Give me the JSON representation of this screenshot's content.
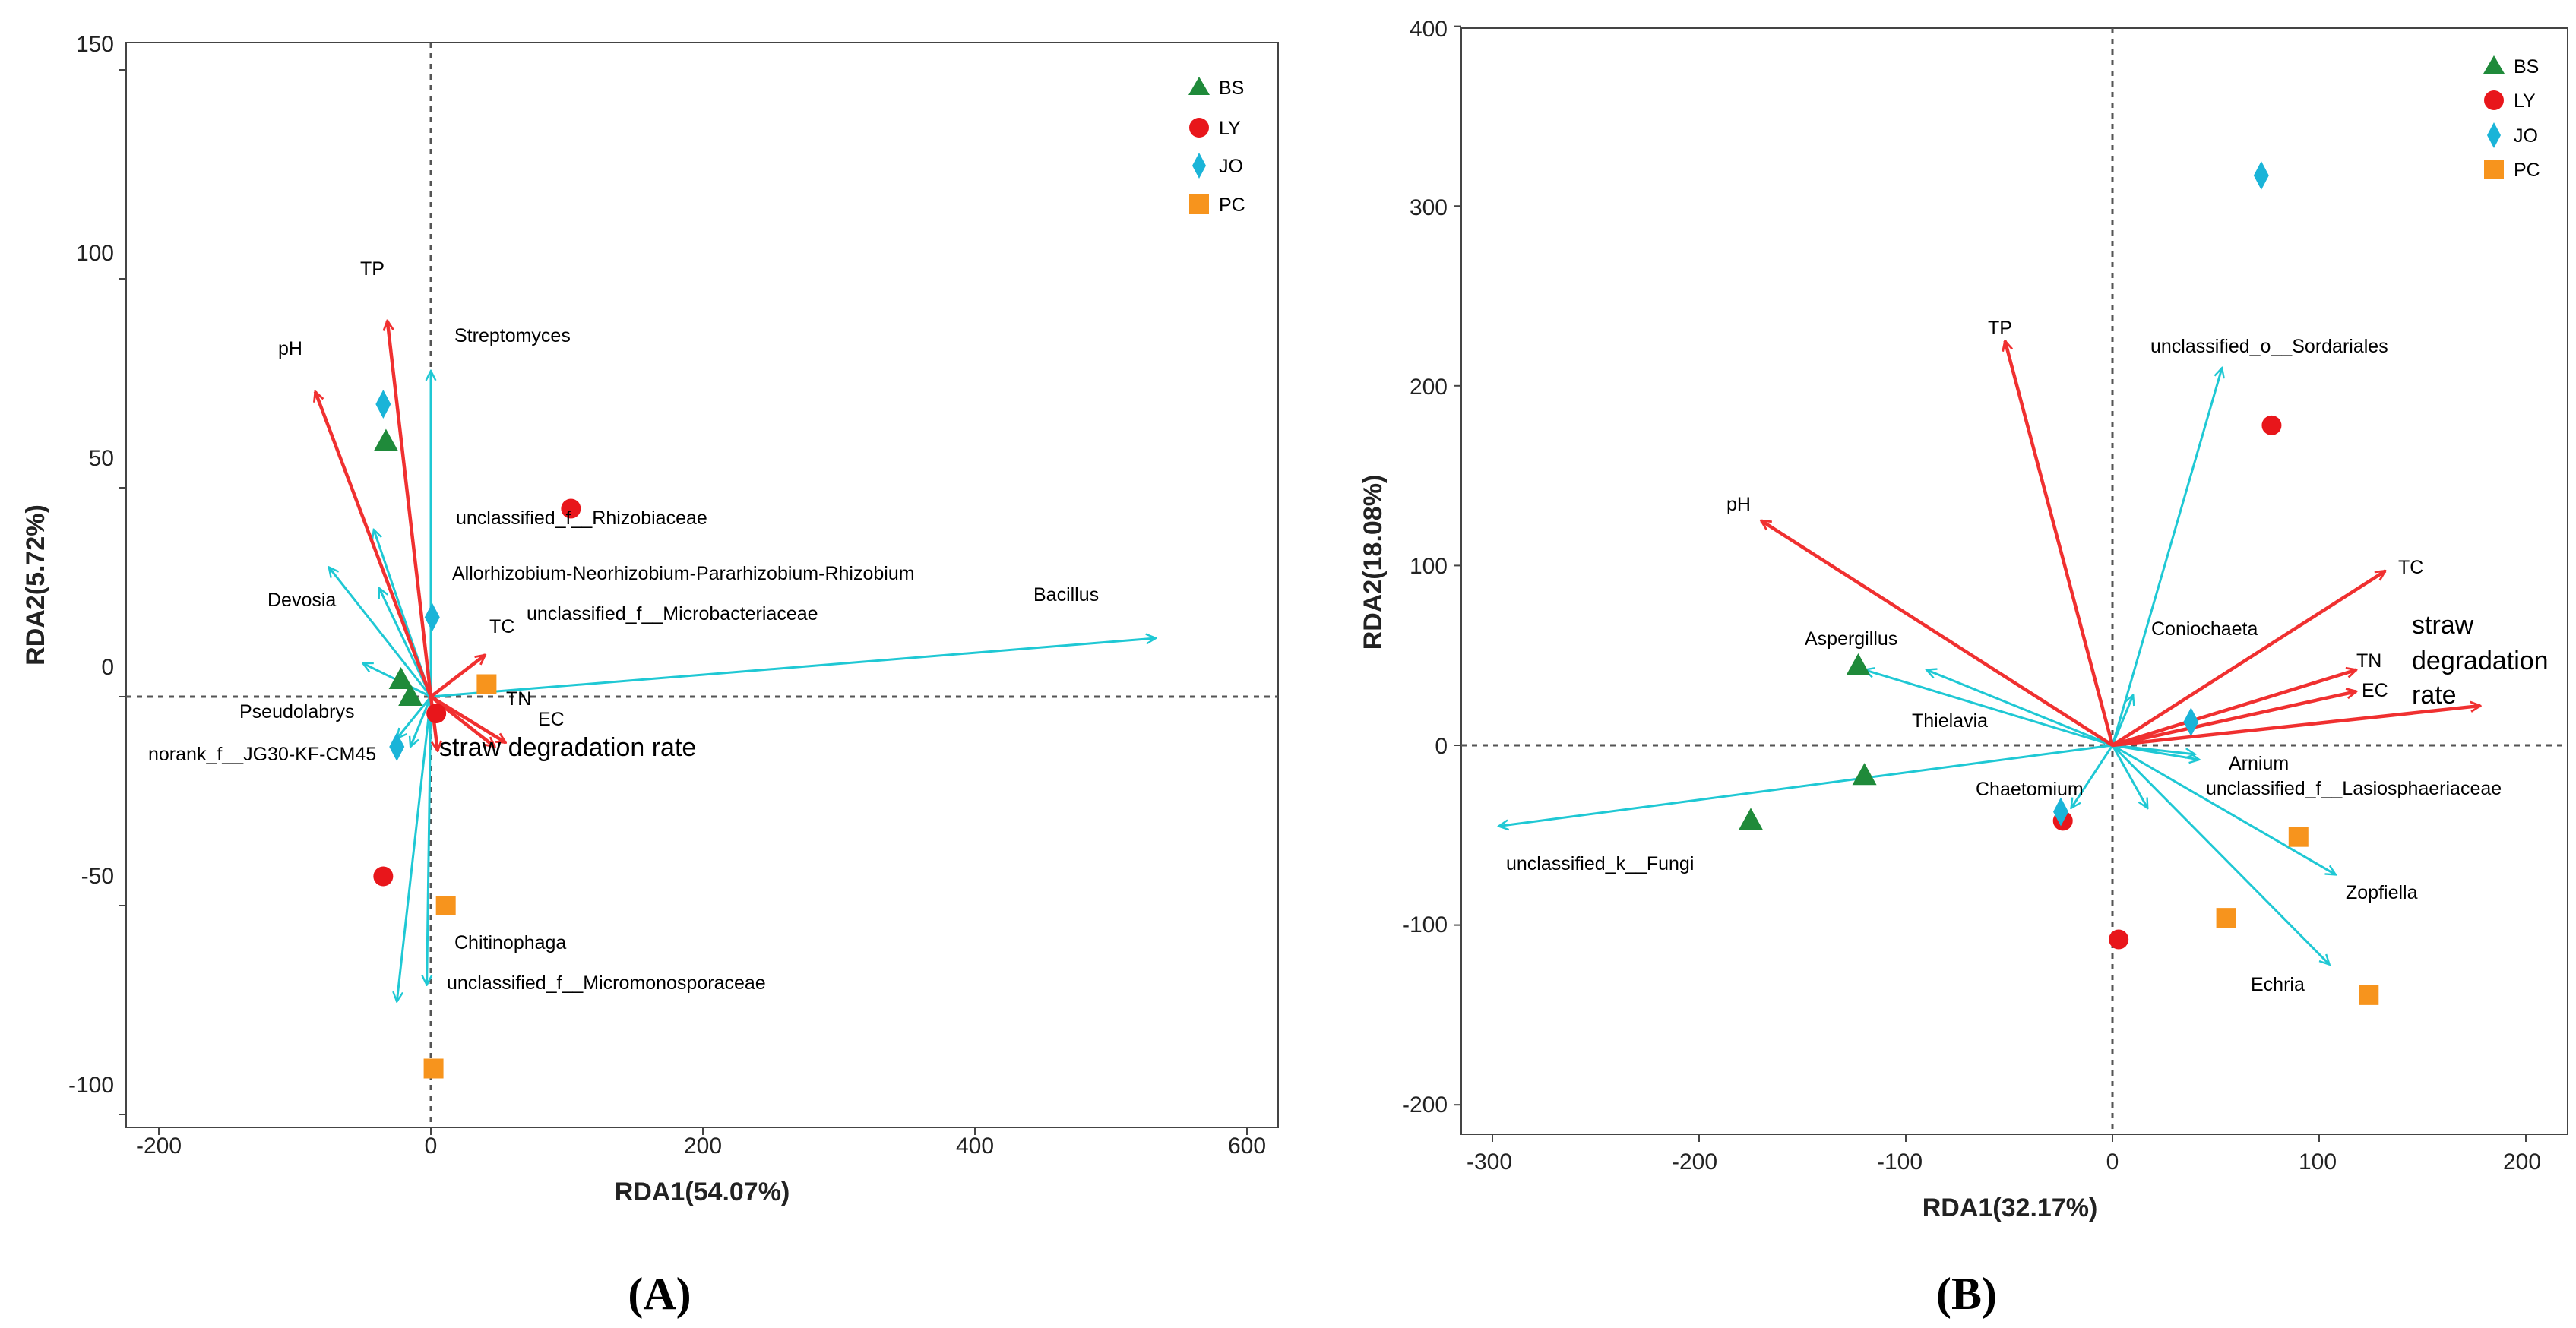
{
  "colors": {
    "env_arrow": "#f03030",
    "taxon_arrow": "#1fc8d4",
    "BS": "#1f8a3a",
    "LY": "#e8161b",
    "JO": "#1ab4d8",
    "PC": "#f7941d"
  },
  "chart_data": [
    {
      "type": "scatter",
      "subtype": "rda-biplot",
      "panel_label": "(A)",
      "xlabel": "RDA1(54.07%)",
      "ylabel": "RDA2(5.72%)",
      "xlim": [
        -225,
        625
      ],
      "ylim": [
        -110,
        150
      ],
      "xticks": [
        -200,
        0,
        200,
        400,
        600
      ],
      "yticks": [
        -100,
        -50,
        0,
        50,
        100,
        150
      ],
      "tick_labels_x": [
        "-200",
        "0",
        "200",
        "400",
        "600"
      ],
      "tick_labels_y": [
        "-100",
        "-50",
        "0",
        "50",
        "100",
        "150"
      ],
      "reference_lines": "dashed lines at x=0 and y=0",
      "legend": {
        "position": "top-right",
        "entries": [
          "BS",
          "LY",
          "JO",
          "PC"
        ]
      },
      "samples": [
        {
          "group": "BS",
          "points": [
            [
              -33,
              61
            ],
            [
              -22,
              4
            ],
            [
              -15,
              0
            ]
          ]
        },
        {
          "group": "LY",
          "points": [
            [
              103,
              45
            ],
            [
              4,
              -4
            ],
            [
              -35,
              -43
            ]
          ]
        },
        {
          "group": "JO",
          "points": [
            [
              -35,
              70
            ],
            [
              1,
              19
            ],
            [
              -25,
              -12
            ]
          ]
        },
        {
          "group": "PC",
          "points": [
            [
              41,
              3
            ],
            [
              11,
              -50
            ],
            [
              2,
              -89
            ]
          ]
        }
      ],
      "env_vectors": [
        {
          "name": "TP",
          "x": -32,
          "y": 90
        },
        {
          "name": "pH",
          "x": -85,
          "y": 73
        },
        {
          "name": "TC",
          "x": 40,
          "y": 10
        },
        {
          "name": "TN",
          "x": 47,
          "y": -12
        },
        {
          "name": "EC",
          "x": 55,
          "y": -11
        },
        {
          "name": "straw degradation rate",
          "x": 5,
          "y": -13
        }
      ],
      "taxa_vectors": [
        {
          "name": "Streptomyces",
          "x": 0,
          "y": 78
        },
        {
          "name": "unclassified_f__Rhizobiaceae",
          "x": -42,
          "y": 40
        },
        {
          "name": "Allorhizobium-Neorhizobium-Pararhizobium-Rhizobium",
          "x": -38,
          "y": 26
        },
        {
          "name": "Devosia",
          "x": -75,
          "y": 31
        },
        {
          "name": "unclassified_f__Microbacteriaceae",
          "x": -50,
          "y": 8
        },
        {
          "name": "Bacillus",
          "x": 533,
          "y": 14
        },
        {
          "name": "Pseudolabrys",
          "x": -25,
          "y": -10
        },
        {
          "name": "norank_f__JG30-KF-CM45",
          "x": -15,
          "y": -12
        },
        {
          "name": "Chitinophaga",
          "x": -3,
          "y": -69
        },
        {
          "name": "unclassified_f__Micromonosporaceae",
          "x": -25,
          "y": -73
        }
      ],
      "annotations": [
        "TP",
        "pH",
        "Streptomyces",
        "unclassified_f__Rhizobiaceae",
        "Allorhizobium-Neorhizobium-Pararhizobium-Rhizobium",
        "Devosia",
        "unclassified_f__Microbacteriaceae",
        "Bacillus",
        "TC",
        "TN",
        "EC",
        "straw degradation rate",
        "Pseudolabrys",
        "norank_f__JG30-KF-CM45",
        "Chitinophaga",
        "unclassified_f__Micromonosporaceae"
      ]
    },
    {
      "type": "scatter",
      "subtype": "rda-biplot",
      "panel_label": "(B)",
      "xlabel": "RDA1(32.17%)",
      "ylabel": "RDA2(18.08%)",
      "xlim": [
        -320,
        220
      ],
      "ylim": [
        -215,
        400
      ],
      "xticks": [
        -300,
        -200,
        -100,
        0,
        100,
        200
      ],
      "yticks": [
        -200,
        -100,
        0,
        100,
        200,
        300,
        400
      ],
      "tick_labels_x": [
        "-300",
        "-200",
        "-100",
        "0",
        "100",
        "200"
      ],
      "tick_labels_y": [
        "-200",
        "-100",
        "0",
        "100",
        "200",
        "300",
        "400"
      ],
      "reference_lines": "dashed lines at x=0 and y=0",
      "legend": {
        "position": "top-right",
        "entries": [
          "BS",
          "LY",
          "JO",
          "PC"
        ]
      },
      "samples": [
        {
          "group": "BS",
          "points": [
            [
              -123,
              44
            ],
            [
              -120,
              -17
            ],
            [
              -175,
              -42
            ]
          ]
        },
        {
          "group": "LY",
          "points": [
            [
              77,
              178
            ],
            [
              -24,
              -42
            ],
            [
              3,
              -108
            ]
          ]
        },
        {
          "group": "JO",
          "points": [
            [
              72,
              317
            ],
            [
              38,
              13
            ],
            [
              -25,
              -37
            ]
          ]
        },
        {
          "group": "PC",
          "points": [
            [
              90,
              -51
            ],
            [
              55,
              -96
            ],
            [
              124,
              -139
            ]
          ]
        }
      ],
      "env_vectors": [
        {
          "name": "TP",
          "x": -52,
          "y": 225
        },
        {
          "name": "pH",
          "x": -170,
          "y": 125
        },
        {
          "name": "TC",
          "x": 132,
          "y": 97
        },
        {
          "name": "TN",
          "x": 118,
          "y": 42
        },
        {
          "name": "EC",
          "x": 118,
          "y": 30
        },
        {
          "name": "straw degradation rate",
          "x": 178,
          "y": 22
        }
      ],
      "taxa_vectors": [
        {
          "name": "unclassified_o__Sordariales",
          "x": 53,
          "y": 210
        },
        {
          "name": "Coniochaeta",
          "x": 10,
          "y": 28
        },
        {
          "name": "Thielavia",
          "x": -90,
          "y": 42
        },
        {
          "name": "Aspergillus",
          "x": -120,
          "y": 42
        },
        {
          "name": "Arnium",
          "x": 42,
          "y": -8
        },
        {
          "name": "unclassified_f__Lasiosphaeriaceae",
          "x": 40,
          "y": -5
        },
        {
          "name": "Chaetomium",
          "x": -20,
          "y": -35
        },
        {
          "name": "unclassified_k__Fungi",
          "x": -297,
          "y": -45
        },
        {
          "name": "Zopfiella",
          "x": 108,
          "y": -72
        },
        {
          "name": "Echria",
          "x": 105,
          "y": -122
        },
        {
          "name": "Chaetomium2",
          "x": 17,
          "y": -35
        }
      ],
      "annotations": [
        "TP",
        "unclassified_o__Sordariales",
        "pH",
        "TC",
        "Coniochaeta",
        "Aspergillus",
        "straw",
        "degradation",
        "rate",
        "TN",
        "EC",
        "Thielavia",
        "Arnium",
        "unclassified_f__Lasiosphaeriaceae",
        "Chaetomium",
        "unclassified_k__Fungi",
        "Zopfiella",
        "Echria"
      ]
    }
  ]
}
